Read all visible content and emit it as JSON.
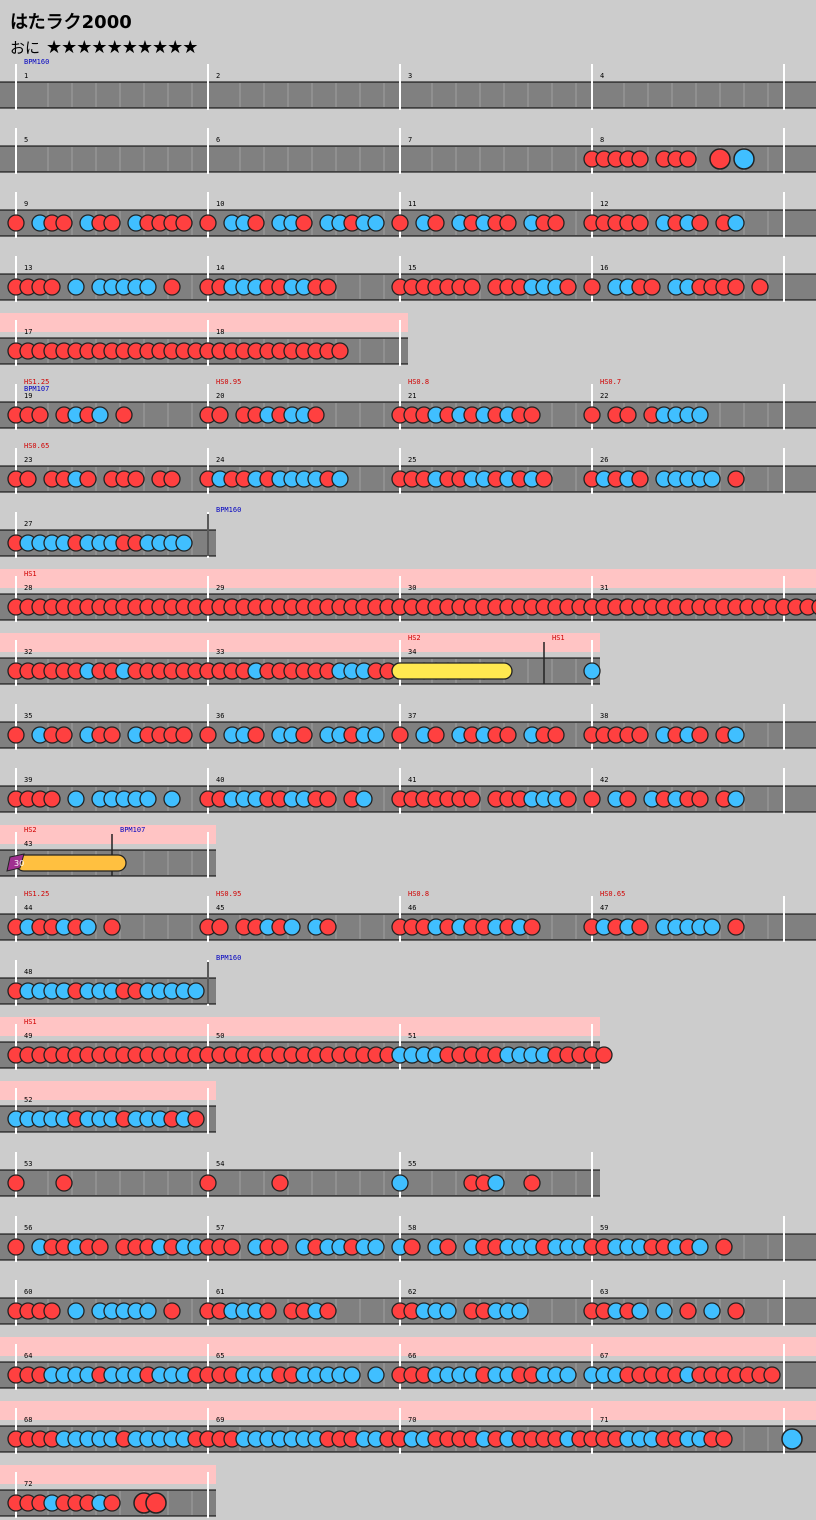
{
  "song": {
    "title": "はたラク2000",
    "difficulty": "おに",
    "stars": "★★★★★★★★★★"
  },
  "colors": {
    "don": "#ff4040",
    "ka": "#40bfff",
    "roll": "#ffe850",
    "balloon": "#ffc040",
    "gogo": "#ffc4c4",
    "lane": "#808080"
  },
  "rows": [
    {
      "bars": [
        1,
        2,
        3,
        4
      ],
      "events": [
        {
          "text": "BPM160",
          "type": "bpm",
          "bar": 1
        }
      ],
      "notes": []
    },
    {
      "bars": [
        5,
        6,
        7,
        8
      ],
      "events": [],
      "notes": [
        [
          3,
          "ddddd ddd D K"
        ]
      ]
    },
    {
      "bars": [
        9,
        10,
        11,
        12
      ],
      "events": [],
      "notes": [
        [
          0,
          "d kdd kdd kdddd"
        ],
        [
          1,
          "d kkd kkd kkdkk"
        ],
        [
          2,
          "d kd kdkdd kdd"
        ],
        [
          3,
          "ddddd kdkd dk"
        ]
      ]
    },
    {
      "bars": [
        13,
        14,
        15,
        16
      ],
      "events": [],
      "notes": [
        [
          0,
          "dddd k kkkkk d"
        ],
        [
          1,
          "ddkkkddkkdd"
        ],
        [
          2,
          "ddddddd dddkkkd"
        ],
        [
          3,
          "d kkdd kkdddd d"
        ]
      ]
    },
    {
      "bars": [
        17,
        18
      ],
      "gogo": true,
      "events": [],
      "notes": [
        [
          0,
          "dddddddddddddddddd"
        ],
        [
          1,
          "dddddddddddd"
        ]
      ]
    },
    {
      "bars": [
        19,
        20,
        21,
        22
      ],
      "events": [
        {
          "text": "HS1.25",
          "type": "hs",
          "bar": 19
        },
        {
          "text": "BPM107",
          "type": "bpm",
          "bar": 19
        },
        {
          "text": "HS0.95",
          "type": "hs",
          "bar": 20
        },
        {
          "text": "HS0.8",
          "type": "hs",
          "bar": 21
        },
        {
          "text": "HS0.7",
          "type": "hs",
          "bar": 22
        }
      ],
      "notes": [
        [
          0,
          "ddd dkdk d"
        ],
        [
          1,
          "dd ddkdkkd"
        ],
        [
          2,
          "dddkdkdkdkdd"
        ],
        [
          3,
          "d dd dkkkk"
        ]
      ]
    },
    {
      "bars": [
        23,
        24,
        25,
        26
      ],
      "events": [
        {
          "text": "HS0.65",
          "type": "hs",
          "bar": 23
        }
      ],
      "notes": [
        [
          0,
          "dd ddkd ddd dd"
        ],
        [
          1,
          "dkddkdkkkkdk"
        ],
        [
          2,
          "dddkddkkdkdkd"
        ],
        [
          3,
          "dkdkd kkkkk d"
        ]
      ]
    },
    {
      "bars": [
        27
      ],
      "events": [
        {
          "text": "BPM160",
          "type": "bpm",
          "bar": 27,
          "frac": 1
        }
      ],
      "notes": [
        [
          0,
          "dkkkkdkkkddkkkk"
        ]
      ]
    },
    {
      "bars": [
        28,
        29,
        30,
        31
      ],
      "gogo": true,
      "events": [
        {
          "text": "HS1",
          "type": "hs",
          "bar": 28
        }
      ],
      "notes": [
        [
          0,
          "dddddddddddddddddddddddd"
        ],
        [
          1,
          "ddddddddddddddddddddddddd"
        ],
        [
          2,
          "ddddddddddddddddddddddddd"
        ],
        [
          3,
          "dddddddddddddddddddddd"
        ]
      ]
    },
    {
      "bars": [
        32,
        33,
        34
      ],
      "gogo": true,
      "events": [
        {
          "text": "HS2",
          "type": "hs",
          "bar": 34
        },
        {
          "text": "HS1",
          "type": "hs",
          "bar": 34,
          "frac": 0.75
        }
      ],
      "notes": [
        [
          0,
          "ddddddkddkdddddddkkkk"
        ],
        [
          1,
          "ddddkddddddkkkdddddkkkkk"
        ],
        [
          2,
          "R"
        ],
        [
          3,
          "k"
        ]
      ]
    },
    {
      "bars": [
        35,
        36,
        37,
        38
      ],
      "events": [],
      "notes": [
        [
          0,
          "d kdd kdd kdddd"
        ],
        [
          1,
          "d kkd kkd kkdkk"
        ],
        [
          2,
          "d kd kdkdd kdd"
        ],
        [
          3,
          "ddddd kdkd dk"
        ]
      ]
    },
    {
      "bars": [
        39,
        40,
        41,
        42
      ],
      "events": [],
      "notes": [
        [
          0,
          "dddd k kkkkk k"
        ],
        [
          1,
          "ddkkkddkkdd dk"
        ],
        [
          2,
          "ddddddd dddkkkd"
        ],
        [
          3,
          "d kd kdkdd dk"
        ]
      ]
    },
    {
      "bars": [
        43
      ],
      "gogo": true,
      "events": [
        {
          "text": "HS2",
          "type": "hs",
          "bar": 43
        },
        {
          "text": "BPM107",
          "type": "bpm",
          "bar": 43,
          "frac": 0.5
        }
      ],
      "notes": [
        [
          0,
          "B"
        ]
      ],
      "balloon": "30"
    },
    {
      "bars": [
        44,
        45,
        46,
        47
      ],
      "events": [
        {
          "text": "HS1.25",
          "type": "hs",
          "bar": 44
        },
        {
          "text": "HS0.95",
          "type": "hs",
          "bar": 45
        },
        {
          "text": "HS0.8",
          "type": "hs",
          "bar": 46
        },
        {
          "text": "HS0.65",
          "type": "hs",
          "bar": 47
        }
      ],
      "notes": [
        [
          0,
          "dkddkdk d"
        ],
        [
          1,
          "dd ddkdk kd"
        ],
        [
          2,
          "dddkdkddkdkd"
        ],
        [
          3,
          "dkdkd kkkkk d"
        ]
      ]
    },
    {
      "bars": [
        48
      ],
      "events": [
        {
          "text": "BPM160",
          "type": "bpm",
          "bar": 48,
          "frac": 1
        }
      ],
      "notes": [
        [
          0,
          "dkkkkdkkkddkkkkk"
        ]
      ]
    },
    {
      "bars": [
        49,
        50,
        51
      ],
      "gogo": true,
      "events": [
        {
          "text": "HS1",
          "type": "hs",
          "bar": 49
        }
      ],
      "notes": [
        [
          0,
          "dddddddddddddddddddddddd"
        ],
        [
          1,
          "ddddddddddddddddddddddd"
        ],
        [
          2,
          "kkkkdddddkkkkddddd"
        ]
      ]
    },
    {
      "bars": [
        52
      ],
      "gogo": true,
      "events": [],
      "notes": [
        [
          0,
          "kkkkkdkkkdkkkdkd"
        ]
      ]
    },
    {
      "bars": [
        53,
        54,
        55
      ],
      "events": [],
      "notes": [
        [
          0,
          "d   d"
        ],
        [
          1,
          "d     d"
        ],
        [
          2,
          "k     ddk  d"
        ]
      ]
    },
    {
      "bars": [
        56,
        57,
        58,
        59
      ],
      "events": [],
      "notes": [
        [
          0,
          "d kddkdd dddkdkk"
        ],
        [
          1,
          "ddd kdd kdkkdkk"
        ],
        [
          2,
          "kd kd kddkkkdkkk"
        ],
        [
          3,
          "ddkkkddkdk d"
        ]
      ]
    },
    {
      "bars": [
        60,
        61,
        62,
        63
      ],
      "events": [],
      "notes": [
        [
          0,
          "dddd k kkkkk d"
        ],
        [
          1,
          "ddkkkd ddkd"
        ],
        [
          2,
          "ddkkk ddkkk"
        ],
        [
          3,
          "ddkdk k d k d"
        ]
      ]
    },
    {
      "bars": [
        64,
        65,
        66,
        67
      ],
      "gogo": true,
      "events": [],
      "notes": [
        [
          0,
          "dddkkkkdkkkdkkkd"
        ],
        [
          1,
          "dddkkkddkkkkk k"
        ],
        [
          2,
          "dddkkkkdkkddkkk"
        ],
        [
          3,
          "kkkdddddkddddddd"
        ]
      ]
    },
    {
      "bars": [
        68,
        69,
        70,
        71
      ],
      "gogo": true,
      "events": [],
      "notes": [
        [
          0,
          "ddddkkkkkdkkkkkdd"
        ],
        [
          1,
          "dddkkkkkkkdddkkdd"
        ],
        [
          2,
          "dkkddddkdkddddkd"
        ],
        [
          3,
          "dddkkkddkkdd    K"
        ]
      ]
    },
    {
      "bars": [
        72
      ],
      "gogo": true,
      "events": [],
      "notes": [
        [
          0,
          "dddkdddkd DD"
        ]
      ]
    }
  ]
}
